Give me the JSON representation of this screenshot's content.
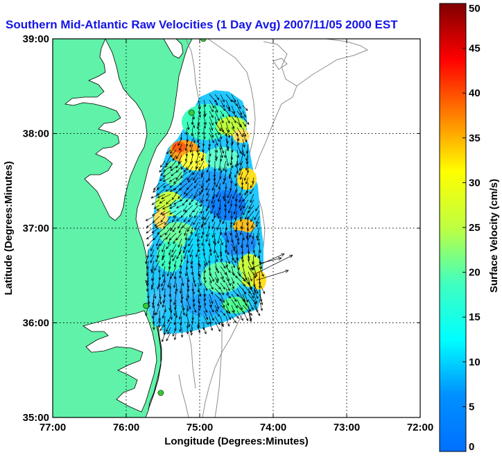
{
  "chart_data": {
    "type": "heatmap",
    "title": "Southern Mid-Atlantic Raw Velocities (1 Day Avg) 2007/11/05 2000 EST",
    "xlabel": "Longitude (Degrees:Minutes)",
    "ylabel": "Latitude (Degrees:Minutes)",
    "x_ticks": [
      {
        "value": -77,
        "label": "77:00"
      },
      {
        "value": -76,
        "label": "76:00"
      },
      {
        "value": -75,
        "label": "75:00"
      },
      {
        "value": -74,
        "label": "74:00"
      },
      {
        "value": -73,
        "label": "73:00"
      },
      {
        "value": -72,
        "label": "72:00"
      }
    ],
    "y_ticks": [
      {
        "value": 35,
        "label": "35:00"
      },
      {
        "value": 36,
        "label": "36:00"
      },
      {
        "value": 37,
        "label": "37:00"
      },
      {
        "value": 38,
        "label": "38:00"
      },
      {
        "value": 39,
        "label": "39:00"
      }
    ],
    "xlim": [
      -77,
      -72
    ],
    "ylim": [
      35,
      39
    ],
    "grid": true,
    "colorbar": {
      "label": "Surface Velocity (cm/s)",
      "range": [
        0,
        50
      ],
      "ticks": [
        {
          "value": 0,
          "label": "0"
        },
        {
          "value": 5,
          "label": "5"
        },
        {
          "value": 10,
          "label": "10"
        },
        {
          "value": 15,
          "label": "15"
        },
        {
          "value": 20,
          "label": "20"
        },
        {
          "value": 25,
          "label": "25"
        },
        {
          "value": 30,
          "label": "30"
        },
        {
          "value": 35,
          "label": "35"
        },
        {
          "value": 40,
          "label": "40"
        },
        {
          "value": 45,
          "label": "45"
        },
        {
          "value": 50,
          "label": "50"
        }
      ],
      "colormap": "jet"
    },
    "colors": {
      "land": "#5ff2a8",
      "coastline": "#000000",
      "bathymetry": "#8c8c8c",
      "stations": "#33cc33",
      "title": "#1414e6"
    },
    "velocity_field": {
      "lon_range": [
        -75.55,
        -74.25
      ],
      "lat_range": [
        35.88,
        38.42
      ],
      "typical_speed_range_cm_s": [
        5,
        35
      ],
      "max_speed_cm_s": 38,
      "dominant_flow": "south-southwest"
    },
    "stations": [
      {
        "lon": -74.95,
        "lat": 39.0
      },
      {
        "lon": -75.11,
        "lat": 38.22
      },
      {
        "lon": -75.73,
        "lat": 36.18
      },
      {
        "lon": -75.53,
        "lat": 35.26
      }
    ]
  }
}
